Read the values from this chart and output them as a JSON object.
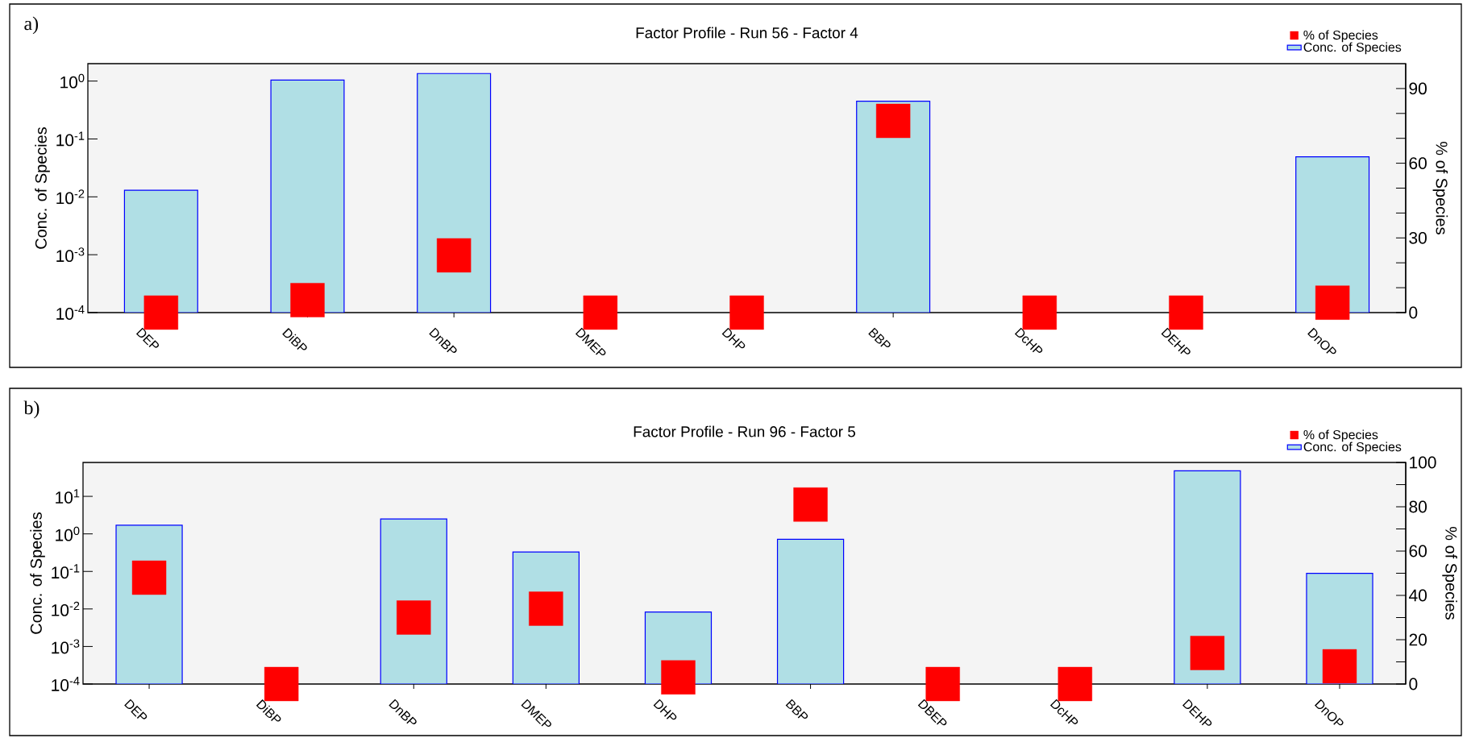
{
  "chart_data": [
    {
      "type": "bar",
      "title": "Factor Profile - Run 56 - Factor 4",
      "ylabel": "Conc. of Species",
      "y2label": "% of Species",
      "annotations": [
        "a)"
      ],
      "legend": "top right",
      "log": "y",
      "marker": "square",
      "categories": [
        "DEP",
        "DiBP",
        "DnBP",
        "DMEP",
        "DHP",
        "BBP",
        "DcHP",
        "DEHP",
        "DnOP"
      ],
      "ylim": [
        0.0001,
        2
      ],
      "yticks": [
        {
          "value": 0.0001,
          "label": "10$^{-4}$"
        },
        {
          "value": 0.001,
          "label": "10$^{-3}$"
        },
        {
          "value": 0.01,
          "label": "10$^{-2}$"
        },
        {
          "value": 0.1,
          "label": "10$^{-1}$"
        },
        {
          "value": 1,
          "label": "10$^{0}$"
        }
      ],
      "y2lim": [
        0,
        100
      ],
      "y2ticks": [
        0,
        {
          "value": 10,
          "label": null
        },
        {
          "value": 20,
          "label": null
        },
        30,
        {
          "value": 40,
          "label": null
        },
        {
          "value": 50,
          "label": null
        },
        60,
        {
          "value": 70,
          "label": null
        },
        {
          "value": 80,
          "label": null
        },
        90
      ],
      "series": [
        {
          "name": "% of Species",
          "type": "scatter",
          "axis": "y2",
          "color": "#ff0000",
          "values": [
            0,
            5,
            23,
            0,
            0,
            77,
            0,
            0,
            4
          ]
        },
        {
          "name": "Conc. of Species",
          "color": "#b0dfe5",
          "values": [
            0.013,
            1.04,
            1.35,
            null,
            null,
            0.45,
            null,
            null,
            0.049
          ]
        }
      ]
    },
    {
      "type": "bar",
      "title": "Factor Profile - Run 96 - Factor 5",
      "ylabel": "Conc. of Species",
      "y2label": "% of Species",
      "annotations": [
        "b)"
      ],
      "legend": "top right",
      "log": "y",
      "marker": "square",
      "categories": [
        "DEP",
        "DiBP",
        "DnBP",
        "DMEP",
        "DHP",
        "BBP",
        "DBEP",
        "DcHP",
        "DEHP",
        "DnOP"
      ],
      "ylim": [
        0.0001,
        80
      ],
      "yticks": [
        {
          "value": 0.0001,
          "label": "10$^{-4}$"
        },
        {
          "value": 0.001,
          "label": "10$^{-3}$"
        },
        {
          "value": 0.01,
          "label": "10$^{-2}$"
        },
        {
          "value": 0.1,
          "label": "10$^{-1}$"
        },
        {
          "value": 1,
          "label": "10$^{0}$"
        },
        {
          "value": 10,
          "label": "10$^{1}$"
        }
      ],
      "y2lim": [
        0,
        100
      ],
      "y2ticks": [
        0,
        {
          "value": 10,
          "label": null
        },
        20,
        {
          "value": 30,
          "label": null
        },
        40,
        {
          "value": 50,
          "label": null
        },
        60,
        {
          "value": 70,
          "label": null
        },
        80,
        {
          "value": 90,
          "label": null
        },
        100
      ],
      "series": [
        {
          "name": "% of Species",
          "type": "scatter",
          "axis": "y2",
          "color": "#ff0000",
          "values": [
            48,
            0,
            30,
            34,
            3,
            81,
            0,
            0,
            14,
            8
          ]
        },
        {
          "name": "Conc. of Species",
          "color": "#b0dfe5",
          "values": [
            1.7,
            null,
            2.5,
            0.33,
            0.0083,
            0.72,
            null,
            null,
            48,
            0.089
          ]
        }
      ]
    }
  ]
}
